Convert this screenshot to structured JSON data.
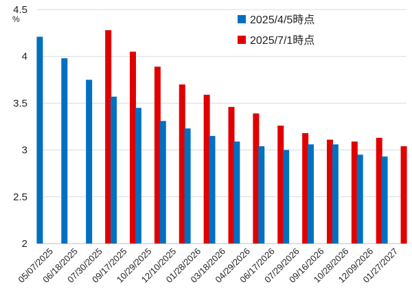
{
  "chart_data": {
    "type": "bar",
    "ylabel": "%",
    "ylim": [
      2,
      4.5
    ],
    "yticks": [
      "2",
      "2.5",
      "3",
      "3.5",
      "4",
      "4.5"
    ],
    "grid": "horizontal",
    "legend_position": "top-right",
    "categories": [
      "05/07/2025",
      "06/18/2025",
      "07/30/2025",
      "09/17/2025",
      "10/29/2025",
      "12/10/2025",
      "01/28/2026",
      "03/18/2026",
      "04/29/2026",
      "06/17/2026",
      "07/29/2026",
      "09/16/2026",
      "10/28/2026",
      "12/09/2026",
      "01/27/2027"
    ],
    "series": [
      {
        "name": "2025/4/5時点",
        "color": "#0070c0",
        "values": [
          4.21,
          3.98,
          3.75,
          3.57,
          3.45,
          3.31,
          3.23,
          3.15,
          3.09,
          3.04,
          3.0,
          3.06,
          3.06,
          2.95,
          2.93
        ]
      },
      {
        "name": "2025/7/1時点",
        "color": "#e00000",
        "values": [
          null,
          null,
          4.28,
          4.05,
          3.89,
          3.7,
          3.59,
          3.46,
          3.39,
          3.26,
          3.18,
          3.11,
          3.09,
          3.13,
          3.04
        ]
      }
    ]
  }
}
